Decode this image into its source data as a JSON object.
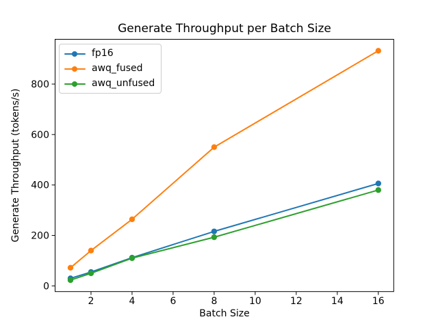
{
  "chart_data": {
    "type": "line",
    "title": "Generate Throughput per Batch Size",
    "xlabel": "Batch Size",
    "ylabel": "Generate Throughput (tokens/s)",
    "x": [
      1,
      2,
      4,
      8,
      16
    ],
    "series": [
      {
        "name": "fp16",
        "color": "#1f77b4",
        "values": [
          30,
          55,
          112,
          216,
          406
        ]
      },
      {
        "name": "awq_fused",
        "color": "#ff7f0e",
        "values": [
          72,
          140,
          264,
          550,
          932
        ]
      },
      {
        "name": "awq_unfused",
        "color": "#2ca02c",
        "values": [
          23,
          50,
          110,
          193,
          380
        ]
      }
    ],
    "xticks": [
      2,
      4,
      6,
      8,
      10,
      12,
      14,
      16
    ],
    "yticks": [
      0,
      200,
      400,
      600,
      800
    ],
    "xlim": [
      0.25,
      16.75
    ],
    "ylim": [
      -22.5,
      977.5
    ],
    "grid": false,
    "marker": "circle",
    "axis_color": "#000000",
    "legend": {
      "position": "upper left",
      "entries": [
        "fp16",
        "awq_fused",
        "awq_unfused"
      ]
    }
  }
}
